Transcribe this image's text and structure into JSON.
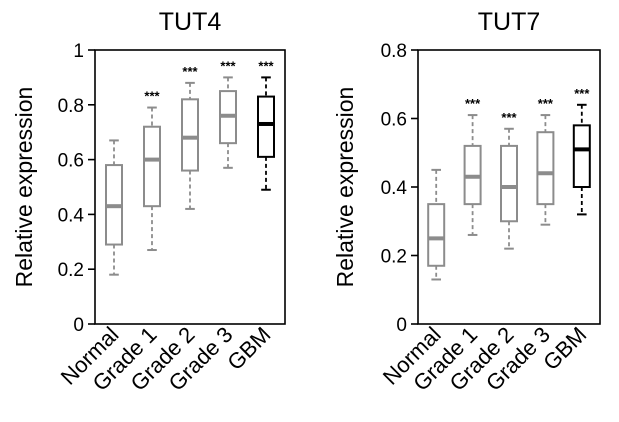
{
  "chart_data": [
    {
      "type": "box",
      "title": "TUT4",
      "ylabel": "Relative expression",
      "ylim": [
        0,
        1
      ],
      "yticks": [
        "0",
        "0.2",
        "0.4",
        "0.6",
        "0.8",
        "1"
      ],
      "yticks_values": [
        0,
        0.2,
        0.4,
        0.6,
        0.8,
        1
      ],
      "categories": [
        "Normal",
        "Grade 1",
        "Grade 2",
        "Grade 3",
        "GBM"
      ],
      "boxes": [
        {
          "category": "Normal",
          "whisker_low": 0.18,
          "q1": 0.29,
          "median": 0.43,
          "q3": 0.58,
          "whisker_high": 0.67,
          "significance": "",
          "color": "#8c8c8c"
        },
        {
          "category": "Grade 1",
          "whisker_low": 0.27,
          "q1": 0.43,
          "median": 0.6,
          "q3": 0.72,
          "whisker_high": 0.79,
          "significance": "***",
          "color": "#8c8c8c"
        },
        {
          "category": "Grade 2",
          "whisker_low": 0.42,
          "q1": 0.56,
          "median": 0.68,
          "q3": 0.82,
          "whisker_high": 0.88,
          "significance": "***",
          "color": "#8c8c8c"
        },
        {
          "category": "Grade 3",
          "whisker_low": 0.57,
          "q1": 0.66,
          "median": 0.76,
          "q3": 0.85,
          "whisker_high": 0.9,
          "significance": "***",
          "color": "#8c8c8c"
        },
        {
          "category": "GBM",
          "whisker_low": 0.49,
          "q1": 0.61,
          "median": 0.73,
          "q3": 0.83,
          "whisker_high": 0.9,
          "significance": "***",
          "color": "#000000"
        }
      ]
    },
    {
      "type": "box",
      "title": "TUT7",
      "ylabel": "Relative expression",
      "ylim": [
        0,
        0.8
      ],
      "yticks": [
        "0",
        "0.2",
        "0.4",
        "0.6",
        "0.8"
      ],
      "yticks_values": [
        0,
        0.2,
        0.4,
        0.6,
        0.8
      ],
      "categories": [
        "Normal",
        "Grade 1",
        "Grade 2",
        "Grade 3",
        "GBM"
      ],
      "boxes": [
        {
          "category": "Normal",
          "whisker_low": 0.13,
          "q1": 0.17,
          "median": 0.25,
          "q3": 0.35,
          "whisker_high": 0.45,
          "significance": "",
          "color": "#8c8c8c"
        },
        {
          "category": "Grade 1",
          "whisker_low": 0.26,
          "q1": 0.35,
          "median": 0.43,
          "q3": 0.52,
          "whisker_high": 0.61,
          "significance": "***",
          "color": "#8c8c8c"
        },
        {
          "category": "Grade 2",
          "whisker_low": 0.22,
          "q1": 0.3,
          "median": 0.4,
          "q3": 0.52,
          "whisker_high": 0.57,
          "significance": "***",
          "color": "#8c8c8c"
        },
        {
          "category": "Grade 3",
          "whisker_low": 0.29,
          "q1": 0.35,
          "median": 0.44,
          "q3": 0.56,
          "whisker_high": 0.61,
          "significance": "***",
          "color": "#8c8c8c"
        },
        {
          "category": "GBM",
          "whisker_low": 0.32,
          "q1": 0.4,
          "median": 0.51,
          "q3": 0.58,
          "whisker_high": 0.64,
          "significance": "***",
          "color": "#000000"
        }
      ]
    }
  ]
}
